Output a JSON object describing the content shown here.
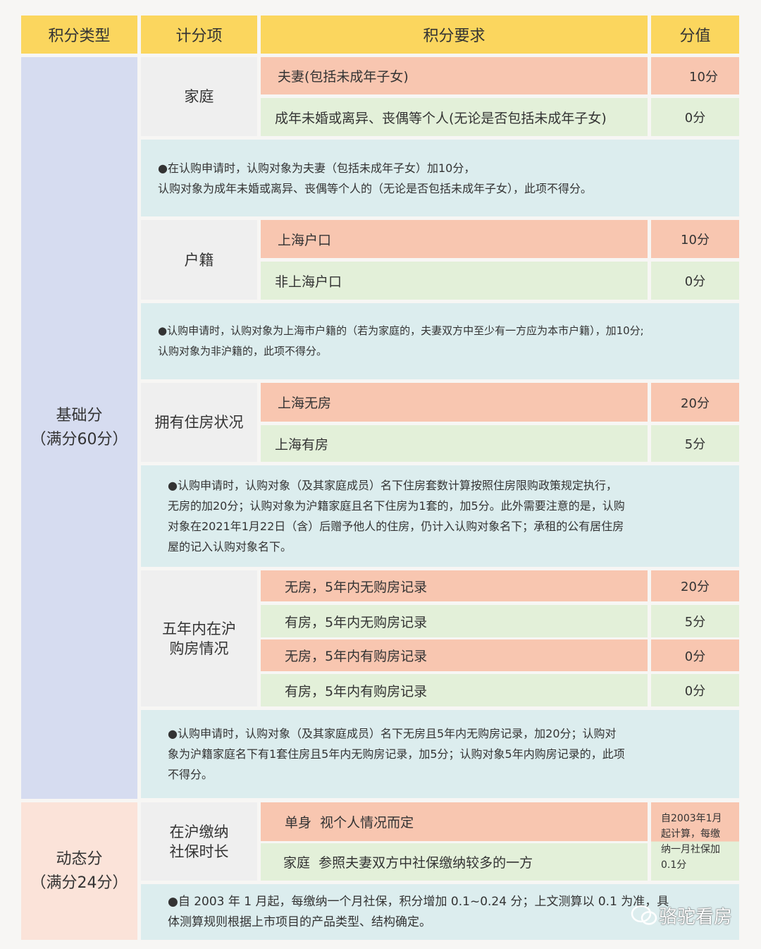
{
  "header": [
    "积分类型",
    "计分项",
    "积分要求",
    "分值"
  ],
  "base": {
    "title": "基础分",
    "subtitle": "（满分60分）"
  },
  "dynamic": {
    "title": "动态分",
    "subtitle": "（满分24分）"
  },
  "family": {
    "label": "家庭",
    "rows": [
      {
        "req": "夫妻(包括未成年子女)",
        "score": "10分"
      },
      {
        "req": "成年未婚或离异、丧偶等个人(无论是否包括未成年子女)",
        "score": "0分"
      }
    ],
    "note": [
      "●在认购申请时，认购对象为夫妻（包括未成年子女）加10分，",
      "认购对象为成年未婚或离异、丧偶等个人的（无论是否包括未成年子女），此项不得分。"
    ]
  },
  "hukou": {
    "label": "户籍",
    "rows": [
      {
        "req": "上海户口",
        "score": "10分"
      },
      {
        "req": "非上海户口",
        "score": "0分"
      }
    ],
    "note": [
      "●认购申请时，认购对象为上海市户籍的（若为家庭的，夫妻双方中至少有一方应为本市户籍），加10分;",
      "认购对象为非沪籍的，此项不得分。"
    ]
  },
  "housing": {
    "label": "拥有住房状况",
    "rows": [
      {
        "req": "上海无房",
        "score": "20分"
      },
      {
        "req": "上海有房",
        "score": "5分"
      }
    ],
    "note": [
      "●认购申请时，认购对象（及其家庭成员）名下住房套数计算按照住房限购政策规定执行，",
      "无房的加20分；认购对象为沪籍家庭且名下住房为1套的，加5分。此外需要注意的是，认购",
      "对象在2021年1月22日（含）后赠予他人的住房，仍计入认购对象名下；承租的公有居住房",
      "屋的记入认购对象名下。"
    ]
  },
  "five": {
    "label": [
      "五年内在沪",
      "购房情况"
    ],
    "rows": [
      {
        "req": "无房，5年内无购房记录",
        "score": "20分"
      },
      {
        "req": "有房，5年内无购房记录",
        "score": "5分"
      },
      {
        "req": "无房，5年内有购房记录",
        "score": "0分"
      },
      {
        "req": "有房，5年内有购房记录",
        "score": "0分"
      }
    ],
    "note": [
      "●认购申请时，认购对象（及其家庭成员）名下无房且5年内无购房记录，加20分；认购对",
      "象为沪籍家庭名下有1套住房且5年内无购房记录，加5分；认购对象5年内购房记录的，此项",
      "不得分。"
    ]
  },
  "social": {
    "label": [
      "在沪缴纳",
      "社保时长"
    ],
    "rows": [
      {
        "req": "单身  视个人情况而定"
      },
      {
        "req": "家庭  参照夫妻双方中社保缴纳较多的一方"
      }
    ],
    "score": [
      "自2003年1月",
      "起计算，每缴",
      "纳一月社保加",
      "0.1分"
    ],
    "note": [
      "●自 2003 年 1 月起，每缴纳一个月社保，积分增加 0.1~0.24 分；上文测算以 0.1 为准，具",
      "体测算规则根据上市项目的产品类型、结构确定。"
    ]
  },
  "watermark": "骆驼看房",
  "colors": {
    "header": "#fbd65e",
    "base": "#d6dcf0",
    "dynamic": "#fbe3d9",
    "label": "#efefef",
    "salmon": "#f8c6b0",
    "green": "#e3f0d9",
    "note": "#dcedee"
  }
}
